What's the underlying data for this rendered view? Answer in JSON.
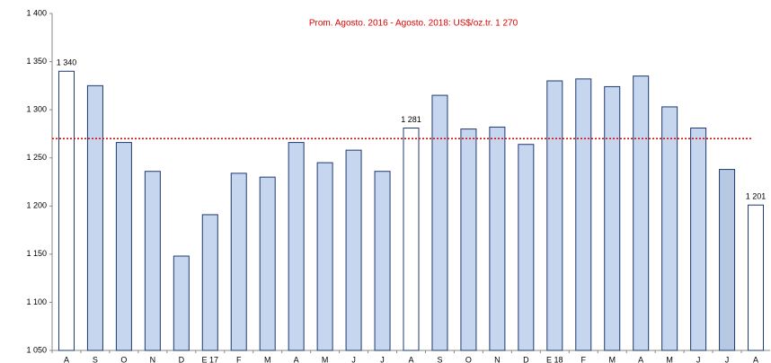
{
  "chart_data": {
    "type": "bar",
    "title": "Prom. Agosto. 2016 - Agosto. 2018: US$/oz.tr. 1 270",
    "reference_line": 1270,
    "reference_color": "#e00000",
    "categories": [
      "A",
      "S",
      "O",
      "N",
      "D",
      "E 17",
      "F",
      "M",
      "A",
      "M",
      "J",
      "J",
      "A",
      "S",
      "O",
      "N",
      "D",
      "E 18",
      "F",
      "M",
      "A",
      "M",
      "J",
      "J",
      "A"
    ],
    "values": [
      1340,
      1325,
      1266,
      1236,
      1148,
      1191,
      1234,
      1230,
      1266,
      1245,
      1258,
      1236,
      1281,
      1315,
      1280,
      1282,
      1264,
      1330,
      1332,
      1324,
      1335,
      1303,
      1281,
      1238,
      1201
    ],
    "value_labels": [
      "1 340",
      null,
      null,
      null,
      null,
      null,
      null,
      null,
      null,
      null,
      null,
      null,
      "1 281",
      null,
      null,
      null,
      null,
      null,
      null,
      null,
      null,
      null,
      null,
      null,
      "1 201"
    ],
    "colors": [
      "#ffffff",
      "#c6d6ef",
      "#c6d6ef",
      "#c6d6ef",
      "#c6d6ef",
      "#c6d6ef",
      "#c6d6ef",
      "#c6d6ef",
      "#c6d6ef",
      "#c6d6ef",
      "#c6d6ef",
      "#c6d6ef",
      "#ffffff",
      "#c6d6ef",
      "#c6d6ef",
      "#c6d6ef",
      "#c6d6ef",
      "#c6d6ef",
      "#c6d6ef",
      "#c6d6ef",
      "#c6d6ef",
      "#c6d6ef",
      "#c6d6ef",
      "#b7c8e3",
      "#ffffff"
    ],
    "edge_color": "#1f3a6e",
    "ylim": [
      1050,
      1400
    ],
    "yticks": [
      {
        "value": 1050,
        "label": "1 050"
      },
      {
        "value": 1100,
        "label": "1 100"
      },
      {
        "value": 1150,
        "label": "1 150"
      },
      {
        "value": 1200,
        "label": "1 200"
      },
      {
        "value": 1250,
        "label": "1 250"
      },
      {
        "value": 1300,
        "label": "1 300"
      },
      {
        "value": 1350,
        "label": "1 350"
      },
      {
        "value": 1400,
        "label": "1 400"
      }
    ]
  }
}
